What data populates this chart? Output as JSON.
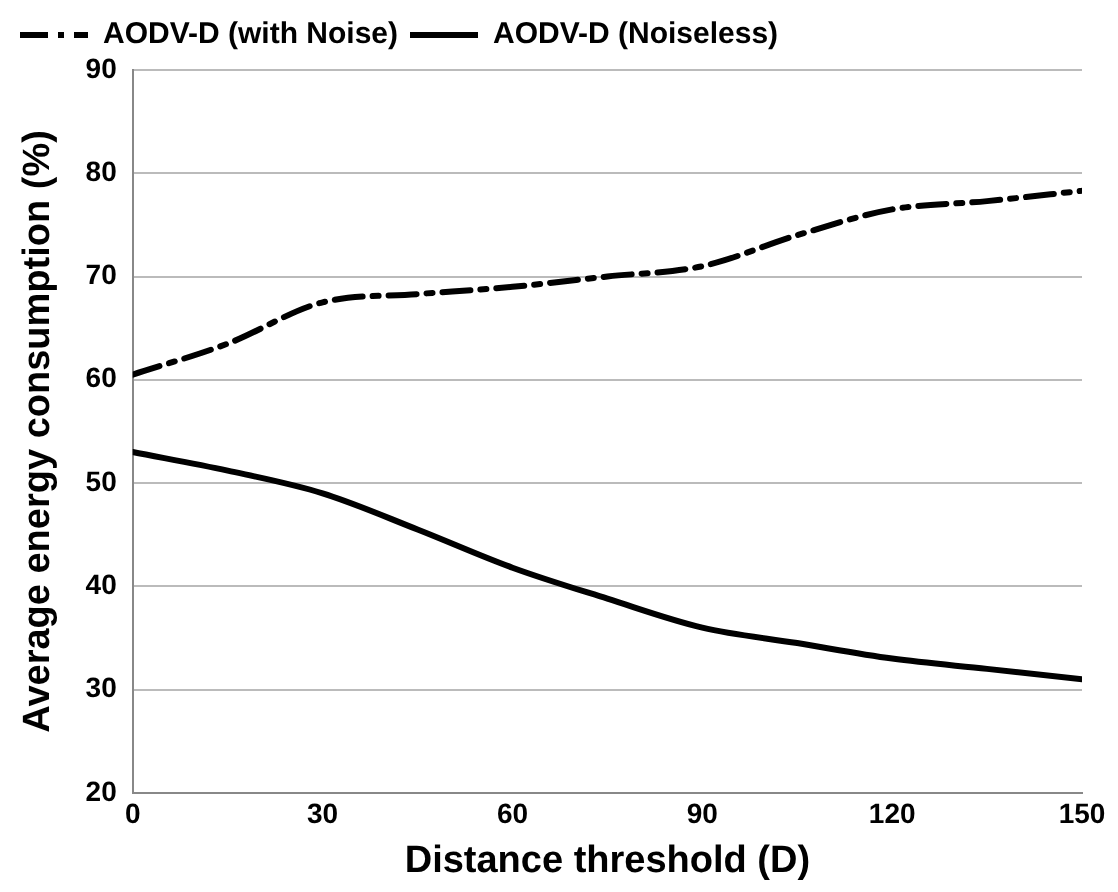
{
  "chart_data": {
    "type": "line",
    "xlabel": "Distance threshold (D)",
    "ylabel": "Average energy consumption (%)",
    "x": [
      0,
      15,
      30,
      45,
      60,
      75,
      90,
      105,
      120,
      135,
      150
    ],
    "series": [
      {
        "name": "AODV-D (with Noise)",
        "color": "#000000",
        "line_style": "dashed",
        "values": [
          60.5,
          63.5,
          67.5,
          68.3,
          69,
          70,
          71,
          74,
          76.5,
          77.3,
          78.3
        ]
      },
      {
        "name": "AODV-D (Noiseless)",
        "color": "#000000",
        "line_style": "solid",
        "values": [
          53,
          51.2,
          49,
          45.5,
          41.8,
          38.8,
          36,
          34.5,
          33,
          32,
          31
        ]
      }
    ],
    "xlim": [
      0,
      150
    ],
    "xticks": [
      0,
      30,
      60,
      90,
      120,
      150
    ],
    "ylim": [
      20,
      90
    ],
    "yticks": [
      20,
      30,
      40,
      50,
      60,
      70,
      80,
      90
    ],
    "grid": "y",
    "legend": "top",
    "marker": "none"
  }
}
